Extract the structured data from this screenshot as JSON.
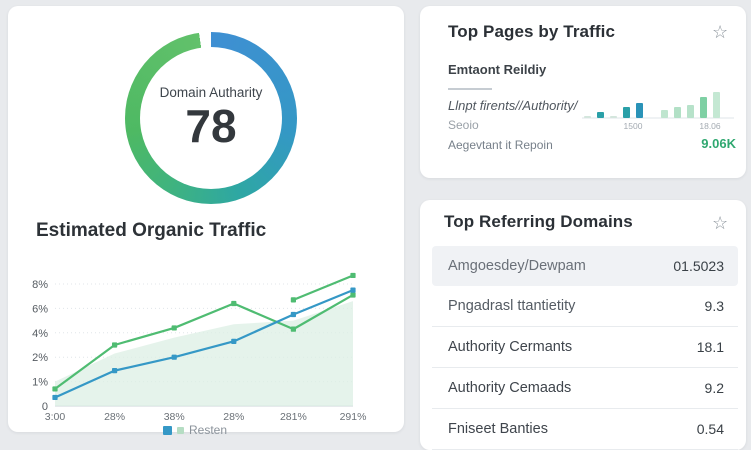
{
  "domain_authority_card": {
    "label": "Domain Autharity",
    "value": "78",
    "ring_colors": {
      "blue": "#3f8fd3",
      "blue2": "#3498c5",
      "teal": "#2ea7a3",
      "green2": "#3fb37f",
      "green": "#4eb963",
      "green_light": "#62c16b"
    }
  },
  "organic_traffic": {
    "title": "Estimated Organic Traffic",
    "legend": {
      "label": "Resten",
      "swatch1": "#3598c6",
      "swatch2": "#b5ddc3"
    }
  },
  "top_pages": {
    "title": "Top Pages by Traffic",
    "star_icon": "☆",
    "line1": "Emtaont Reildiy",
    "line2": "Llnpt firents//Authority/",
    "line3": "Seoio",
    "line4": "Aegevtant it Repoin",
    "total_value": "9.06K"
  },
  "referring": {
    "title": "Top Referring Domains",
    "star_icon": "☆",
    "rows": [
      {
        "label": "Amgoesdey/Dewpam",
        "value": "01.5023"
      },
      {
        "label": "Pngadrasl ttantietity",
        "value": "9.3"
      },
      {
        "label": "Authority Cermants",
        "value": "18.1"
      },
      {
        "label": "Authority Cemaads",
        "value": "9.2"
      },
      {
        "label": "Fniseet Banties",
        "value": "0.54"
      }
    ]
  },
  "chart_data": [
    {
      "id": "domain-authority-donut",
      "type": "donut",
      "title": "Domain Autharity",
      "value": 78,
      "max": 100
    },
    {
      "id": "organic-traffic-line",
      "type": "line",
      "title": "Estimated Organic Traffic",
      "x_labels": [
        "3:00",
        "28%",
        "38%",
        "28%",
        "281%",
        "291%"
      ],
      "y_ticks": {
        "labels": [
          "0",
          "1%",
          "2%",
          "4%",
          "6%",
          "8%"
        ],
        "values": [
          0,
          1,
          2,
          4,
          6,
          8
        ]
      },
      "grid": true,
      "legend_position": "bottom",
      "series": [
        {
          "name": "green",
          "color": "#4fbc72",
          "values": [
            0.7,
            3.0,
            4.4,
            6.4,
            4.3,
            7.1
          ]
        },
        {
          "name": "green-upper",
          "color": "#4fbc72",
          "values": [
            null,
            null,
            null,
            null,
            6.7,
            8.7
          ]
        },
        {
          "name": "Resten",
          "color": "#3598c6",
          "values": [
            0.35,
            1.45,
            2.0,
            3.3,
            5.5,
            7.5
          ]
        }
      ],
      "area": {
        "color": "#dcefe4",
        "values": [
          1.0,
          2.3,
          3.6,
          4.7,
          5.0,
          6.6
        ]
      }
    },
    {
      "id": "top-pages-bars",
      "type": "bar",
      "bars": [
        {
          "v": 2,
          "color": "#d4e6dd"
        },
        {
          "v": 6,
          "color": "#2aa0a8"
        },
        {
          "v": 2,
          "color": "#d4e6dd"
        },
        {
          "v": 11,
          "color": "#2aa0a8"
        },
        {
          "v": 15,
          "color": "#2a93b8"
        },
        {
          "v": 8,
          "color": "#bfe5cf"
        },
        {
          "v": 11,
          "color": "#b2e0c6"
        },
        {
          "v": 13,
          "color": "#b7e2ca"
        },
        {
          "v": 21,
          "color": "#7ed0a4"
        },
        {
          "v": 26,
          "color": "#c4e8d3"
        }
      ],
      "gap_after": 4,
      "x_labels": [
        {
          "text": "1500",
          "x": 51
        },
        {
          "text": "18.06",
          "x": 128
        }
      ]
    }
  ]
}
